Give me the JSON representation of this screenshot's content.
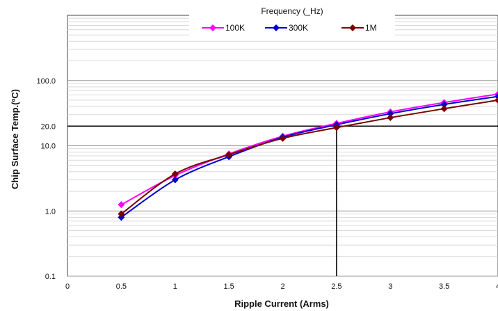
{
  "chart_data": {
    "type": "line",
    "xlabel": "Ripple Current (Arms)",
    "ylabel": "Chip Surface Temp.(ºC)",
    "y_scale": "log",
    "xlim": [
      0,
      4
    ],
    "ylim": [
      0.1,
      1000
    ],
    "x_ticks": [
      "0",
      "0.5",
      "1",
      "1.5",
      "2",
      "2.5",
      "3",
      "3.5",
      "4"
    ],
    "y_ticks": [
      {
        "value": 0.1,
        "label": "0.1"
      },
      {
        "value": 1,
        "label": "1.0"
      },
      {
        "value": 10,
        "label": "10.0"
      },
      {
        "value": 20,
        "label": "20.0"
      },
      {
        "value": 100,
        "label": "100.0"
      }
    ],
    "legend": {
      "title": "Frequency (_Hz)",
      "position": "top-center"
    },
    "x": [
      0.5,
      1,
      1.5,
      2,
      2.5,
      3,
      3.5,
      4
    ],
    "series": [
      {
        "name": "100K",
        "color": "#ff00ff",
        "values": [
          1.25,
          3.5,
          7.5,
          14,
          22,
          33,
          46,
          62
        ]
      },
      {
        "name": "300K",
        "color": "#0000cc",
        "values": [
          0.8,
          3.0,
          6.8,
          13.5,
          21,
          31,
          43,
          57
        ]
      },
      {
        "name": "1M",
        "color": "#7a0000",
        "values": [
          0.9,
          3.7,
          7.3,
          13,
          19,
          27,
          37,
          50
        ]
      }
    ],
    "reference_lines": [
      {
        "x": 2.5,
        "y": 20
      }
    ],
    "grid": true
  }
}
